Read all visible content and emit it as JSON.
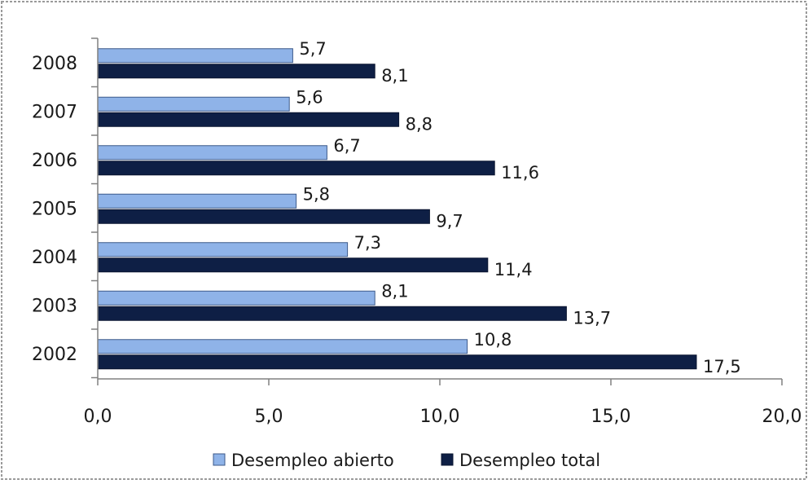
{
  "chart_data": {
    "type": "bar",
    "orientation": "horizontal",
    "categories": [
      "2002",
      "2003",
      "2004",
      "2005",
      "2006",
      "2007",
      "2008"
    ],
    "series": [
      {
        "name": "Desempleo abierto",
        "values": [
          10.8,
          8.1,
          7.3,
          5.8,
          6.7,
          5.6,
          5.7
        ],
        "labels": [
          "10,8",
          "8,1",
          "7,3",
          "5,8",
          "6,7",
          "5,6",
          "5,7"
        ],
        "color": "#8fb3e8"
      },
      {
        "name": "Desempleo total",
        "values": [
          17.5,
          13.7,
          11.4,
          9.7,
          11.6,
          8.8,
          8.1
        ],
        "labels": [
          "17,5",
          "13,7",
          "11,4",
          "9,7",
          "11,6",
          "8,8",
          "8,1"
        ],
        "color": "#0e1f45"
      }
    ],
    "xlim": [
      0,
      20
    ],
    "xticks": [
      0,
      5,
      10,
      15,
      20
    ],
    "xtick_labels": [
      "0,0",
      "5,0",
      "10,0",
      "15,0",
      "20,0"
    ],
    "grid": false,
    "legend_position": "bottom",
    "title": "",
    "xlabel": "",
    "ylabel": ""
  },
  "colors": {
    "axis": "#808080",
    "border": "#808080"
  }
}
